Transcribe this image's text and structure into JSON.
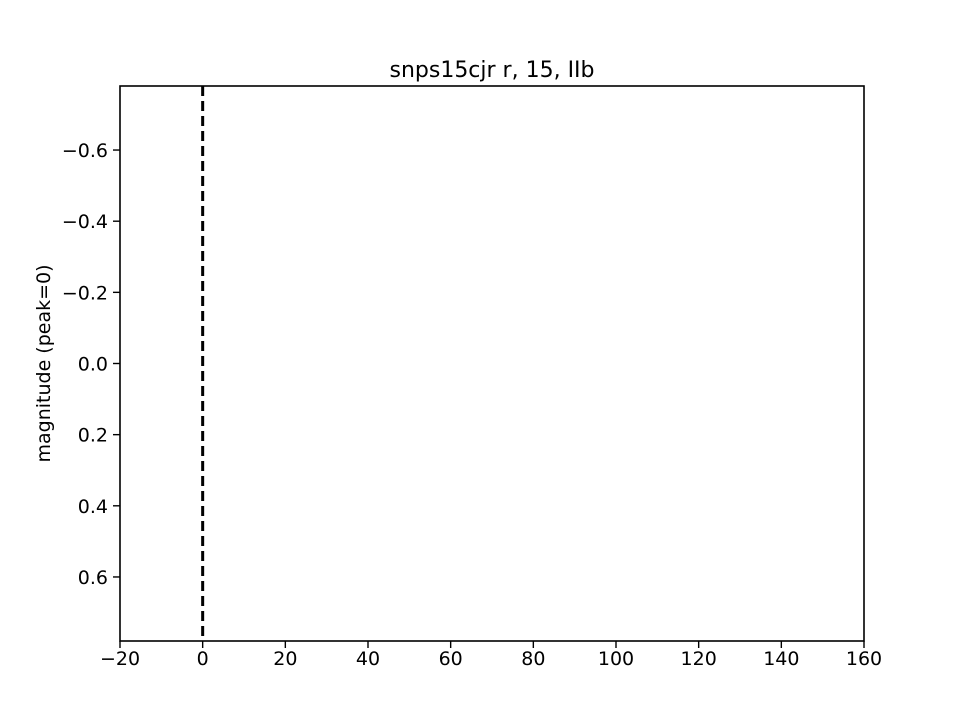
{
  "chart_data": {
    "type": "line",
    "title": "snps15cjr r, 15, IIb",
    "xlabel": "",
    "ylabel": "magnitude (peak=0)",
    "xlim": [
      -20,
      160
    ],
    "ylim": [
      0.78,
      -0.78
    ],
    "y_inverted": true,
    "grid": false,
    "x_ticks": [
      -20,
      0,
      20,
      40,
      60,
      80,
      100,
      120,
      140,
      160
    ],
    "x_tick_labels": [
      "−20",
      "0",
      "20",
      "40",
      "60",
      "80",
      "100",
      "120",
      "140",
      "160"
    ],
    "y_ticks": [
      -0.6,
      -0.4,
      -0.2,
      0.0,
      0.2,
      0.4,
      0.6
    ],
    "y_tick_labels": [
      "−0.6",
      "−0.4",
      "−0.2",
      "0.0",
      "0.2",
      "0.4",
      "0.6"
    ],
    "series": [],
    "reference_lines": [
      {
        "orientation": "vertical",
        "x": 0,
        "style": "dashed",
        "color": "#000000"
      }
    ]
  }
}
